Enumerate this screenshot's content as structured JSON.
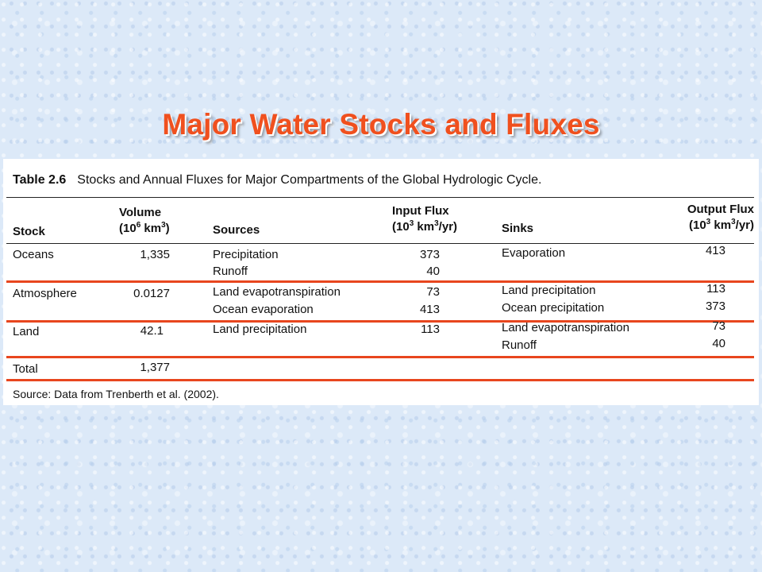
{
  "slide_title": "Major Water Stocks and Fluxes",
  "table": {
    "number": "Table 2.6",
    "caption": "Stocks and Annual Fluxes for Major Compartments of the Global Hydrologic Cycle.",
    "headers": {
      "stock": "Stock",
      "volume": "Volume",
      "volume_unit_pre": "(10",
      "volume_exp": "6",
      "volume_unit_mid": " km",
      "volume_unit_exp": "3",
      "volume_unit_post": ")",
      "sources": "Sources",
      "input_flux": "Input Flux",
      "flux_unit_pre": "(10",
      "flux_exp": "3",
      "flux_unit_mid": " km",
      "flux_unit_exp": "3",
      "flux_unit_post": "/yr)",
      "sinks": "Sinks",
      "output_flux": "Output Flux"
    },
    "rows": [
      {
        "stock": "Oceans",
        "volume": "1,335",
        "sources": [
          "Precipitation",
          "Runoff"
        ],
        "inputs": [
          "373",
          "40"
        ],
        "sinks": [
          "Evaporation"
        ],
        "outputs": [
          "413"
        ]
      },
      {
        "stock": "Atmosphere",
        "volume": "0.0127",
        "sources": [
          "Land evapotranspiration",
          "Ocean evaporation"
        ],
        "inputs": [
          "73",
          "413"
        ],
        "sinks": [
          "Land precipitation",
          "Ocean precipitation"
        ],
        "outputs": [
          "113",
          "373"
        ]
      },
      {
        "stock": "Land",
        "volume": "42.1",
        "sources": [
          "Land precipitation"
        ],
        "inputs": [
          "113"
        ],
        "sinks": [
          "Land evapotranspiration",
          "Runoff"
        ],
        "outputs": [
          "73",
          "40"
        ]
      },
      {
        "stock": "Total",
        "volume": "1,377"
      }
    ],
    "source_note": "Source: Data from Trenberth et al. (2002)."
  },
  "colors": {
    "title": "#f0501e",
    "rule_accent": "#e8461e",
    "background": "#dce9f8"
  }
}
